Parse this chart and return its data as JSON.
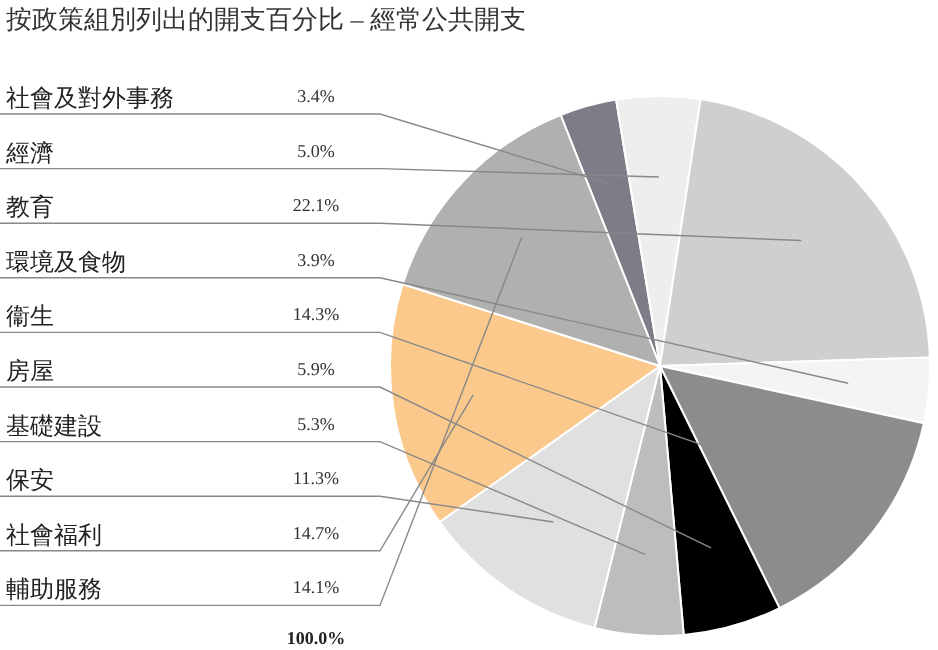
{
  "chart_data": {
    "type": "pie",
    "title": "按政策組別列出的開支百分比 – 經常公共開支",
    "categories": [
      "社會及對外事務",
      "經濟",
      "教育",
      "環境及食物",
      "衞生",
      "房屋",
      "基礎建設",
      "保安",
      "社會福利",
      "輔助服務"
    ],
    "values": [
      3.4,
      5.0,
      22.1,
      3.9,
      14.3,
      5.9,
      5.3,
      11.3,
      14.7,
      14.1
    ],
    "colors": [
      "#7f7b87",
      "#eeeeee",
      "#cfcfcf",
      "#f4f4f4",
      "#8c8c8c",
      "#000000",
      "#bdbdbd",
      "#e0e0e0",
      "#fbc98c",
      "#b0b0b0"
    ],
    "value_labels": [
      "3.4%",
      "5.0%",
      "22.1%",
      "3.9%",
      "14.3%",
      "5.9%",
      "5.3%",
      "11.3%",
      "14.7%",
      "14.1%"
    ],
    "annotations": [
      "100.0%"
    ]
  }
}
